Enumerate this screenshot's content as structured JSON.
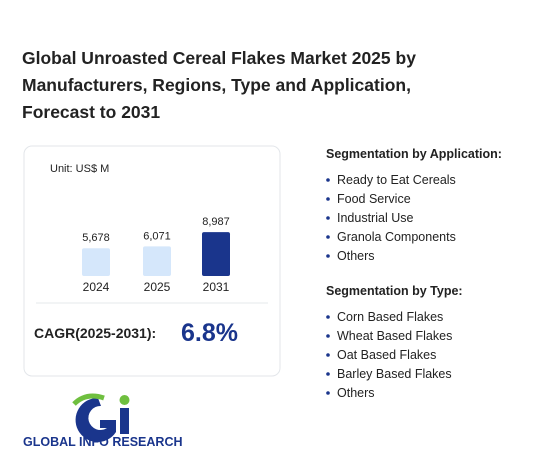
{
  "title_lines": [
    "Global Unroasted Cereal Flakes Market 2025 by",
    "Manufacturers, Regions, Type and Application,",
    "Forecast to 2031"
  ],
  "chart_data": {
    "type": "bar",
    "unit": "Unit: US$ M",
    "categories": [
      "2024",
      "2025",
      "2031"
    ],
    "values": [
      5678,
      6071,
      8987
    ],
    "value_labels": [
      "5,678",
      "6,071",
      "8,987"
    ],
    "colors": [
      "#d5e7fb",
      "#d5e7fb",
      "#1a358c"
    ],
    "ylim": [
      0,
      9000
    ]
  },
  "cagr": {
    "label": "CAGR(2025-2031):",
    "value": "6.8%"
  },
  "segments": [
    {
      "heading": "Segmentation by Application:",
      "items": [
        "Ready to Eat Cereals",
        "Food Service",
        "Industrial Use",
        "Granola Components",
        "Others"
      ]
    },
    {
      "heading": "Segmentation by Type:",
      "items": [
        "Corn Based Flakes",
        "Wheat Based Flakes",
        "Oat Based Flakes",
        "Barley Based Flakes",
        "Others"
      ]
    }
  ],
  "logo_text": "GLOBAL INFO RESEARCH"
}
